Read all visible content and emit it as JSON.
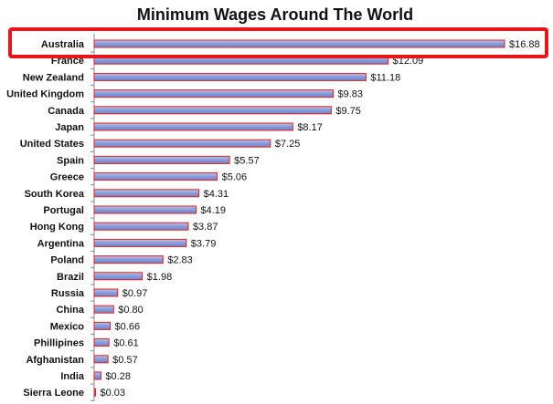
{
  "chart_data": {
    "type": "bar",
    "orientation": "horizontal",
    "title": "Minimum Wages Around The World",
    "xlabel": "",
    "ylabel": "",
    "value_prefix": "$",
    "categories": [
      "Australia",
      "France",
      "New Zealand",
      "United Kingdom",
      "Canada",
      "Japan",
      "United States",
      "Spain",
      "Greece",
      "South Korea",
      "Portugal",
      "Hong Kong",
      "Argentina",
      "Poland",
      "Brazil",
      "Russia",
      "China",
      "Mexico",
      "Phillipines",
      "Afghanistan",
      "India",
      "Sierra Leone"
    ],
    "values": [
      16.88,
      12.09,
      11.18,
      9.83,
      9.75,
      8.17,
      7.25,
      5.57,
      5.06,
      4.31,
      4.19,
      3.87,
      3.79,
      2.83,
      1.98,
      0.97,
      0.8,
      0.66,
      0.61,
      0.57,
      0.28,
      0.03
    ],
    "value_labels": [
      "$16.88",
      "$12.09",
      "$11.18",
      "$9.83",
      "$9.75",
      "$8.17",
      "$7.25",
      "$5.57",
      "$5.06",
      "$4.31",
      "$4.19",
      "$3.87",
      "$3.79",
      "$2.83",
      "$1.98",
      "$0.97",
      "$0.80",
      "$0.66",
      "$0.61",
      "$0.57",
      "$0.28",
      "$0.03"
    ],
    "xlim": [
      0,
      16.88
    ],
    "grid": false,
    "legend": false,
    "highlight_category": "Australia",
    "colors": {
      "bar_fill_top": "#b7c4ec",
      "bar_fill_mid": "#8c9fdb",
      "bar_fill_bottom": "#6e82c8",
      "bar_stroke": "#e02020",
      "highlight_box": "#e8161b",
      "axis": "#888888",
      "text": "#111111"
    }
  }
}
